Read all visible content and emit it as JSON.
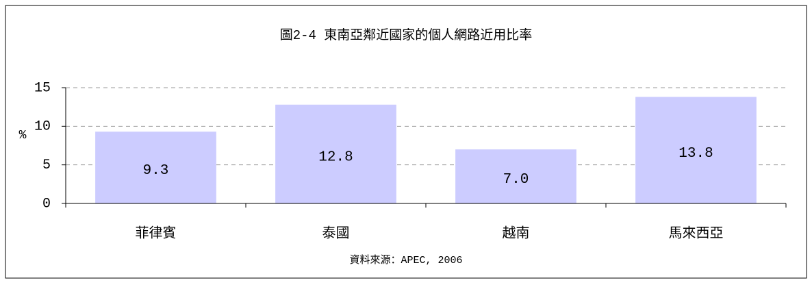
{
  "chart_data": {
    "type": "bar",
    "title": "圖2-4 東南亞鄰近國家的個人網路近用比率",
    "y_label": "%",
    "source": "資料來源：APEC, 2006",
    "categories": [
      "菲律賓",
      "泰國",
      "越南",
      "馬來西亞"
    ],
    "values": [
      9.3,
      12.8,
      7.0,
      13.8
    ],
    "value_labels": [
      "9.3",
      "12.8",
      "7.0",
      "13.8"
    ],
    "color": "#ccccff",
    "ylim": [
      0,
      15
    ],
    "yticks": [
      0,
      5,
      10,
      15
    ],
    "grid": true
  }
}
